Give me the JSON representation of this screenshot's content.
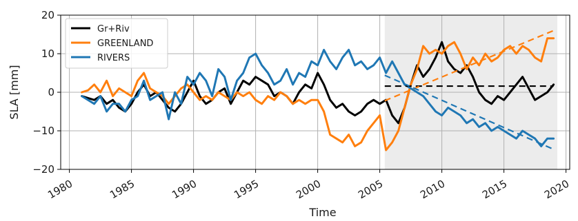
{
  "chart_data": {
    "type": "line",
    "xlabel": "Time",
    "ylabel": "SLA [mm]",
    "xlim": [
      1979.3,
      2020.3
    ],
    "ylim": [
      -20,
      20
    ],
    "xticks": [
      1980,
      1985,
      1990,
      1995,
      2000,
      2005,
      2010,
      2015,
      2020
    ],
    "yticks": [
      -20,
      -10,
      0,
      10,
      20
    ],
    "xtick_labels": [
      "1980",
      "1985",
      "1990",
      "1995",
      "2000",
      "2005",
      "2010",
      "2015",
      "2020"
    ],
    "ytick_labels": [
      "−20",
      "−10",
      "0",
      "10",
      "20"
    ],
    "grid": true,
    "legend_position": "top-left",
    "shaded_region": {
      "x": [
        2005.4,
        2019.3
      ],
      "color": "#ececec"
    },
    "series": [
      {
        "name": "Gr+Riv",
        "color": "#000000",
        "x": [
          1981.0,
          1981.5,
          1982.0,
          1982.5,
          1983.0,
          1983.5,
          1984.0,
          1984.5,
          1985.0,
          1985.5,
          1986.0,
          1986.5,
          1987.0,
          1987.5,
          1988.0,
          1988.5,
          1989.0,
          1989.5,
          1990.0,
          1990.5,
          1991.0,
          1991.5,
          1992.0,
          1992.5,
          1993.0,
          1993.5,
          1994.0,
          1994.5,
          1995.0,
          1995.5,
          1996.0,
          1996.5,
          1997.0,
          1997.5,
          1998.0,
          1998.5,
          1999.0,
          1999.5,
          2000.0,
          2000.5,
          2001.0,
          2001.5,
          2002.0,
          2002.5,
          2003.0,
          2003.5,
          2004.0,
          2004.5,
          2005.0,
          2005.5,
          2006.0,
          2006.5,
          2007.0,
          2007.5,
          2008.0,
          2008.5,
          2009.0,
          2009.5,
          2010.0,
          2010.5,
          2011.0,
          2011.5,
          2012.0,
          2012.5,
          2013.0,
          2013.5,
          2014.0,
          2014.5,
          2015.0,
          2015.5,
          2016.0,
          2016.5,
          2017.0,
          2017.5,
          2018.0,
          2018.5,
          2019.0
        ],
        "y": [
          -1,
          -1.5,
          -2,
          -1,
          -3,
          -2,
          -4,
          -5,
          -3,
          0,
          2,
          -1,
          0,
          -2,
          -4,
          -5,
          -3,
          0,
          3,
          -1,
          -3,
          -2,
          0,
          1,
          -3,
          0,
          3,
          2,
          4,
          3,
          2,
          -1,
          0,
          -1,
          -3,
          0,
          2,
          1,
          5,
          2,
          -2,
          -4,
          -3,
          -5,
          -6,
          -5,
          -3,
          -2,
          -3,
          -2,
          -6,
          -8,
          -4,
          2,
          7,
          4,
          6,
          9,
          13,
          8,
          6,
          5,
          7,
          4,
          0,
          -2,
          -3,
          -1,
          -2,
          0,
          2,
          4,
          1,
          -2,
          -1,
          0,
          2
        ]
      },
      {
        "name": "GREENLAND",
        "color": "#ff7f0e",
        "x": [
          1981.0,
          1981.5,
          1982.0,
          1982.5,
          1983.0,
          1983.5,
          1984.0,
          1984.5,
          1985.0,
          1985.5,
          1986.0,
          1986.5,
          1987.0,
          1987.5,
          1988.0,
          1988.5,
          1989.0,
          1989.5,
          1990.0,
          1990.5,
          1991.0,
          1991.5,
          1992.0,
          1992.5,
          1993.0,
          1993.5,
          1994.0,
          1994.5,
          1995.0,
          1995.5,
          1996.0,
          1996.5,
          1997.0,
          1997.5,
          1998.0,
          1998.5,
          1999.0,
          1999.5,
          2000.0,
          2000.5,
          2001.0,
          2001.5,
          2002.0,
          2002.5,
          2003.0,
          2003.5,
          2004.0,
          2004.5,
          2005.0,
          2005.5,
          2006.0,
          2006.5,
          2007.0,
          2007.5,
          2008.0,
          2008.5,
          2009.0,
          2009.5,
          2010.0,
          2010.5,
          2011.0,
          2011.5,
          2012.0,
          2012.5,
          2013.0,
          2013.5,
          2014.0,
          2014.5,
          2015.0,
          2015.5,
          2016.0,
          2016.5,
          2017.0,
          2017.5,
          2018.0,
          2018.5,
          2019.0
        ],
        "y": [
          0,
          0.5,
          2,
          0,
          3,
          -1,
          1,
          0,
          -1,
          3,
          5,
          1,
          0,
          -1,
          -3,
          -1,
          1,
          2,
          0,
          -2,
          -1,
          -2,
          0,
          -1,
          -2,
          0,
          -1,
          0,
          -2,
          -3,
          -1,
          -2,
          0,
          -1,
          -3,
          -2,
          -3,
          -2,
          -2,
          -5,
          -11,
          -12,
          -13,
          -11,
          -14,
          -13,
          -10,
          -8,
          -6,
          -15,
          -13,
          -10,
          -4,
          2,
          6,
          12,
          10,
          11,
          10,
          12,
          13,
          10,
          6,
          9,
          7,
          10,
          8,
          9,
          11,
          12,
          10,
          12,
          11,
          9,
          8,
          14,
          14
        ]
      },
      {
        "name": "RIVERS",
        "color": "#1f77b4",
        "x": [
          1981.0,
          1981.5,
          1982.0,
          1982.5,
          1983.0,
          1983.5,
          1984.0,
          1984.5,
          1985.0,
          1985.5,
          1986.0,
          1986.5,
          1987.0,
          1987.5,
          1988.0,
          1988.5,
          1989.0,
          1989.5,
          1990.0,
          1990.5,
          1991.0,
          1991.5,
          1992.0,
          1992.5,
          1993.0,
          1993.5,
          1994.0,
          1994.5,
          1995.0,
          1995.5,
          1996.0,
          1996.5,
          1997.0,
          1997.5,
          1998.0,
          1998.5,
          1999.0,
          1999.5,
          2000.0,
          2000.5,
          2001.0,
          2001.5,
          2002.0,
          2002.5,
          2003.0,
          2003.5,
          2004.0,
          2004.5,
          2005.0,
          2005.5,
          2006.0,
          2006.5,
          2007.0,
          2007.5,
          2008.0,
          2008.5,
          2009.0,
          2009.5,
          2010.0,
          2010.5,
          2011.0,
          2011.5,
          2012.0,
          2012.5,
          2013.0,
          2013.5,
          2014.0,
          2014.5,
          2015.0,
          2015.5,
          2016.0,
          2016.5,
          2017.0,
          2017.5,
          2018.0,
          2018.5,
          2019.0
        ],
        "y": [
          -1,
          -2,
          -3,
          -1,
          -5,
          -3,
          -3,
          -5,
          -2,
          -1,
          3,
          -2,
          -1,
          0,
          -7,
          0,
          -3,
          4,
          2,
          5,
          3,
          -1,
          6,
          4,
          -2,
          3,
          5,
          9,
          10,
          7,
          5,
          2,
          3,
          6,
          2,
          5,
          4,
          8,
          7,
          11,
          8,
          6,
          9,
          11,
          7,
          8,
          6,
          7,
          9,
          5,
          8,
          5,
          2,
          1,
          0,
          -1,
          -3,
          -5,
          -6,
          -4,
          -5,
          -6,
          -8,
          -7,
          -9,
          -8,
          -10,
          -9,
          -10,
          -11,
          -12,
          -10,
          -11,
          -12,
          -14,
          -12,
          -12
        ]
      }
    ],
    "trend_lines": [
      {
        "color": "#000000",
        "x": [
          2005.4,
          2019.0
        ],
        "y": [
          1.6,
          1.6
        ]
      },
      {
        "color": "#ff7f0e",
        "x": [
          2005.4,
          2019.0
        ],
        "y": [
          -2.2,
          16.0
        ]
      },
      {
        "color": "#1f77b4",
        "x": [
          2005.4,
          2019.0
        ],
        "y": [
          4.4,
          -14.8
        ]
      }
    ]
  }
}
